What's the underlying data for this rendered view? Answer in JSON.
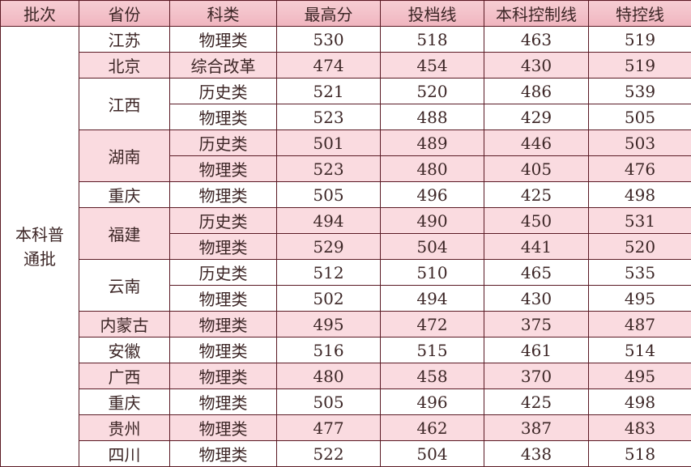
{
  "headers": [
    "批次",
    "省份",
    "科类",
    "最高分",
    "投档线",
    "本科控制线",
    "特控线"
  ],
  "batch": "本科普通批",
  "batch_lines": [
    "本科普",
    "通批"
  ],
  "colors": {
    "header": "#f0b5bf",
    "stripe": "#fadbe0",
    "border": "#5a1a24"
  },
  "groups": [
    {
      "province": "江苏",
      "rows": [
        {
          "type": "物理类",
          "max": "530",
          "toudang": "518",
          "control": "463",
          "special": "519"
        }
      ]
    },
    {
      "province": "北京",
      "rows": [
        {
          "type": "综合改革",
          "max": "474",
          "toudang": "454",
          "control": "430",
          "special": "519"
        }
      ]
    },
    {
      "province": "江西",
      "rows": [
        {
          "type": "历史类",
          "max": "521",
          "toudang": "520",
          "control": "486",
          "special": "539"
        },
        {
          "type": "物理类",
          "max": "523",
          "toudang": "488",
          "control": "429",
          "special": "505"
        }
      ]
    },
    {
      "province": "湖南",
      "rows": [
        {
          "type": "历史类",
          "max": "501",
          "toudang": "489",
          "control": "446",
          "special": "503"
        },
        {
          "type": "物理类",
          "max": "523",
          "toudang": "480",
          "control": "405",
          "special": "476"
        }
      ]
    },
    {
      "province": "重庆",
      "rows": [
        {
          "type": "物理类",
          "max": "505",
          "toudang": "496",
          "control": "425",
          "special": "498"
        }
      ]
    },
    {
      "province": "福建",
      "rows": [
        {
          "type": "历史类",
          "max": "494",
          "toudang": "490",
          "control": "450",
          "special": "531"
        },
        {
          "type": "物理类",
          "max": "529",
          "toudang": "504",
          "control": "441",
          "special": "520"
        }
      ]
    },
    {
      "province": "云南",
      "rows": [
        {
          "type": "历史类",
          "max": "512",
          "toudang": "510",
          "control": "465",
          "special": "535"
        },
        {
          "type": "物理类",
          "max": "502",
          "toudang": "494",
          "control": "430",
          "special": "495"
        }
      ]
    },
    {
      "province": "内蒙古",
      "rows": [
        {
          "type": "物理类",
          "max": "495",
          "toudang": "472",
          "control": "375",
          "special": "487"
        }
      ]
    },
    {
      "province": "安徽",
      "rows": [
        {
          "type": "物理类",
          "max": "516",
          "toudang": "515",
          "control": "461",
          "special": "514"
        }
      ]
    },
    {
      "province": "广西",
      "rows": [
        {
          "type": "物理类",
          "max": "480",
          "toudang": "458",
          "control": "370",
          "special": "495"
        }
      ]
    },
    {
      "province": "重庆",
      "rows": [
        {
          "type": "物理类",
          "max": "505",
          "toudang": "496",
          "control": "425",
          "special": "498"
        }
      ]
    },
    {
      "province": "贵州",
      "rows": [
        {
          "type": "物理类",
          "max": "477",
          "toudang": "462",
          "control": "387",
          "special": "483"
        }
      ]
    },
    {
      "province": "四川",
      "rows": [
        {
          "type": "物理类",
          "max": "522",
          "toudang": "504",
          "control": "438",
          "special": "518"
        }
      ]
    }
  ]
}
